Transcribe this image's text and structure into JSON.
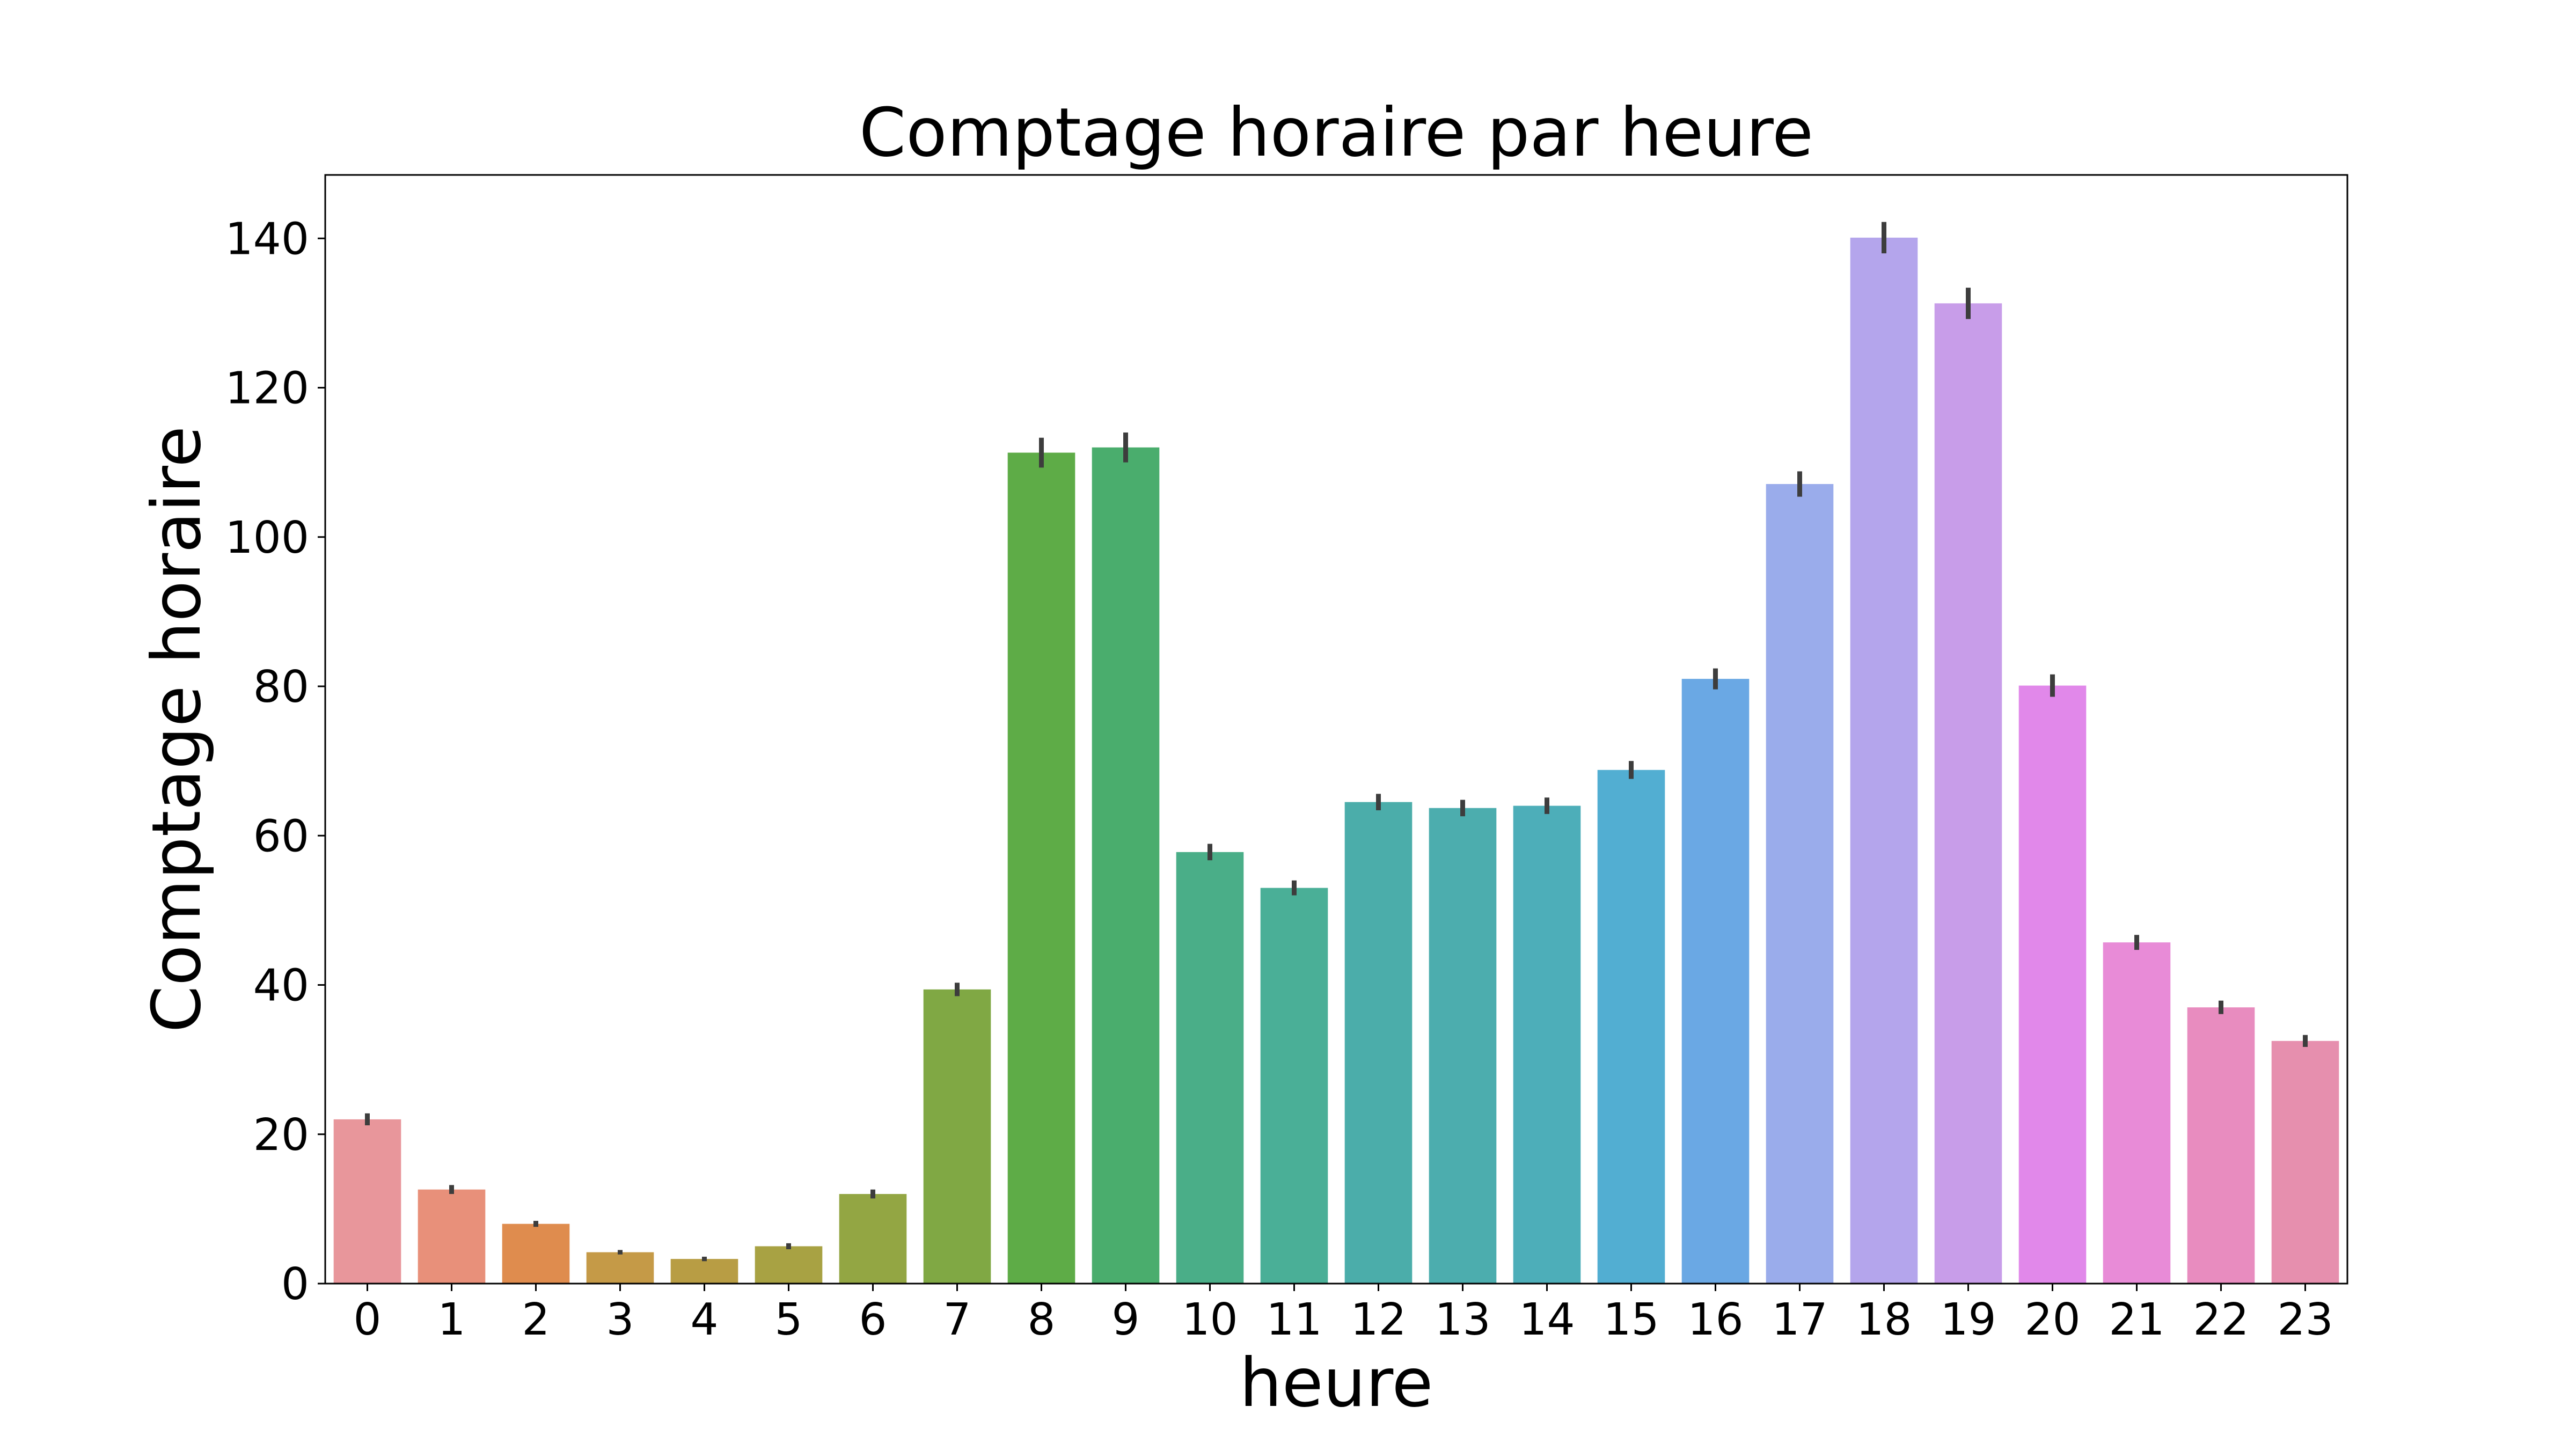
{
  "chart_data": {
    "type": "bar",
    "title": "Comptage horaire par heure",
    "xlabel": "heure",
    "ylabel": "Comptage horaire",
    "categories": [
      "0",
      "1",
      "2",
      "3",
      "4",
      "5",
      "6",
      "7",
      "8",
      "9",
      "10",
      "11",
      "12",
      "13",
      "14",
      "15",
      "16",
      "17",
      "18",
      "19",
      "20",
      "21",
      "22",
      "23"
    ],
    "values": [
      22.0,
      12.6,
      8.0,
      4.2,
      3.3,
      5.0,
      12.0,
      39.4,
      111.3,
      112.0,
      57.8,
      53.0,
      64.5,
      63.7,
      64.0,
      68.8,
      81.0,
      107.1,
      140.1,
      131.3,
      80.1,
      45.7,
      37.0,
      32.5
    ],
    "errors": [
      0.8,
      0.6,
      0.4,
      0.3,
      0.3,
      0.4,
      0.6,
      0.9,
      2.0,
      2.0,
      1.1,
      1.0,
      1.1,
      1.1,
      1.1,
      1.2,
      1.4,
      1.7,
      2.1,
      2.1,
      1.5,
      1.0,
      0.9,
      0.8
    ],
    "colors": [
      "#e8969b",
      "#e8907a",
      "#df8c4e",
      "#c59a47",
      "#b89d44",
      "#a8a243",
      "#93a643",
      "#80a844",
      "#5eac47",
      "#4aad6d",
      "#4aae88",
      "#4aaf97",
      "#4badaa",
      "#4cadae",
      "#4daeb9",
      "#52aed2",
      "#6aa8e4",
      "#9aaceb",
      "#b4a5ec",
      "#c89de9",
      "#e188ea",
      "#e88bd7",
      "#e88cbf",
      "#e68fae"
    ],
    "ylim": [
      0,
      148.5
    ],
    "yticks": [
      0,
      20,
      40,
      60,
      80,
      100,
      120,
      140
    ],
    "grid": false,
    "legend": "none"
  }
}
